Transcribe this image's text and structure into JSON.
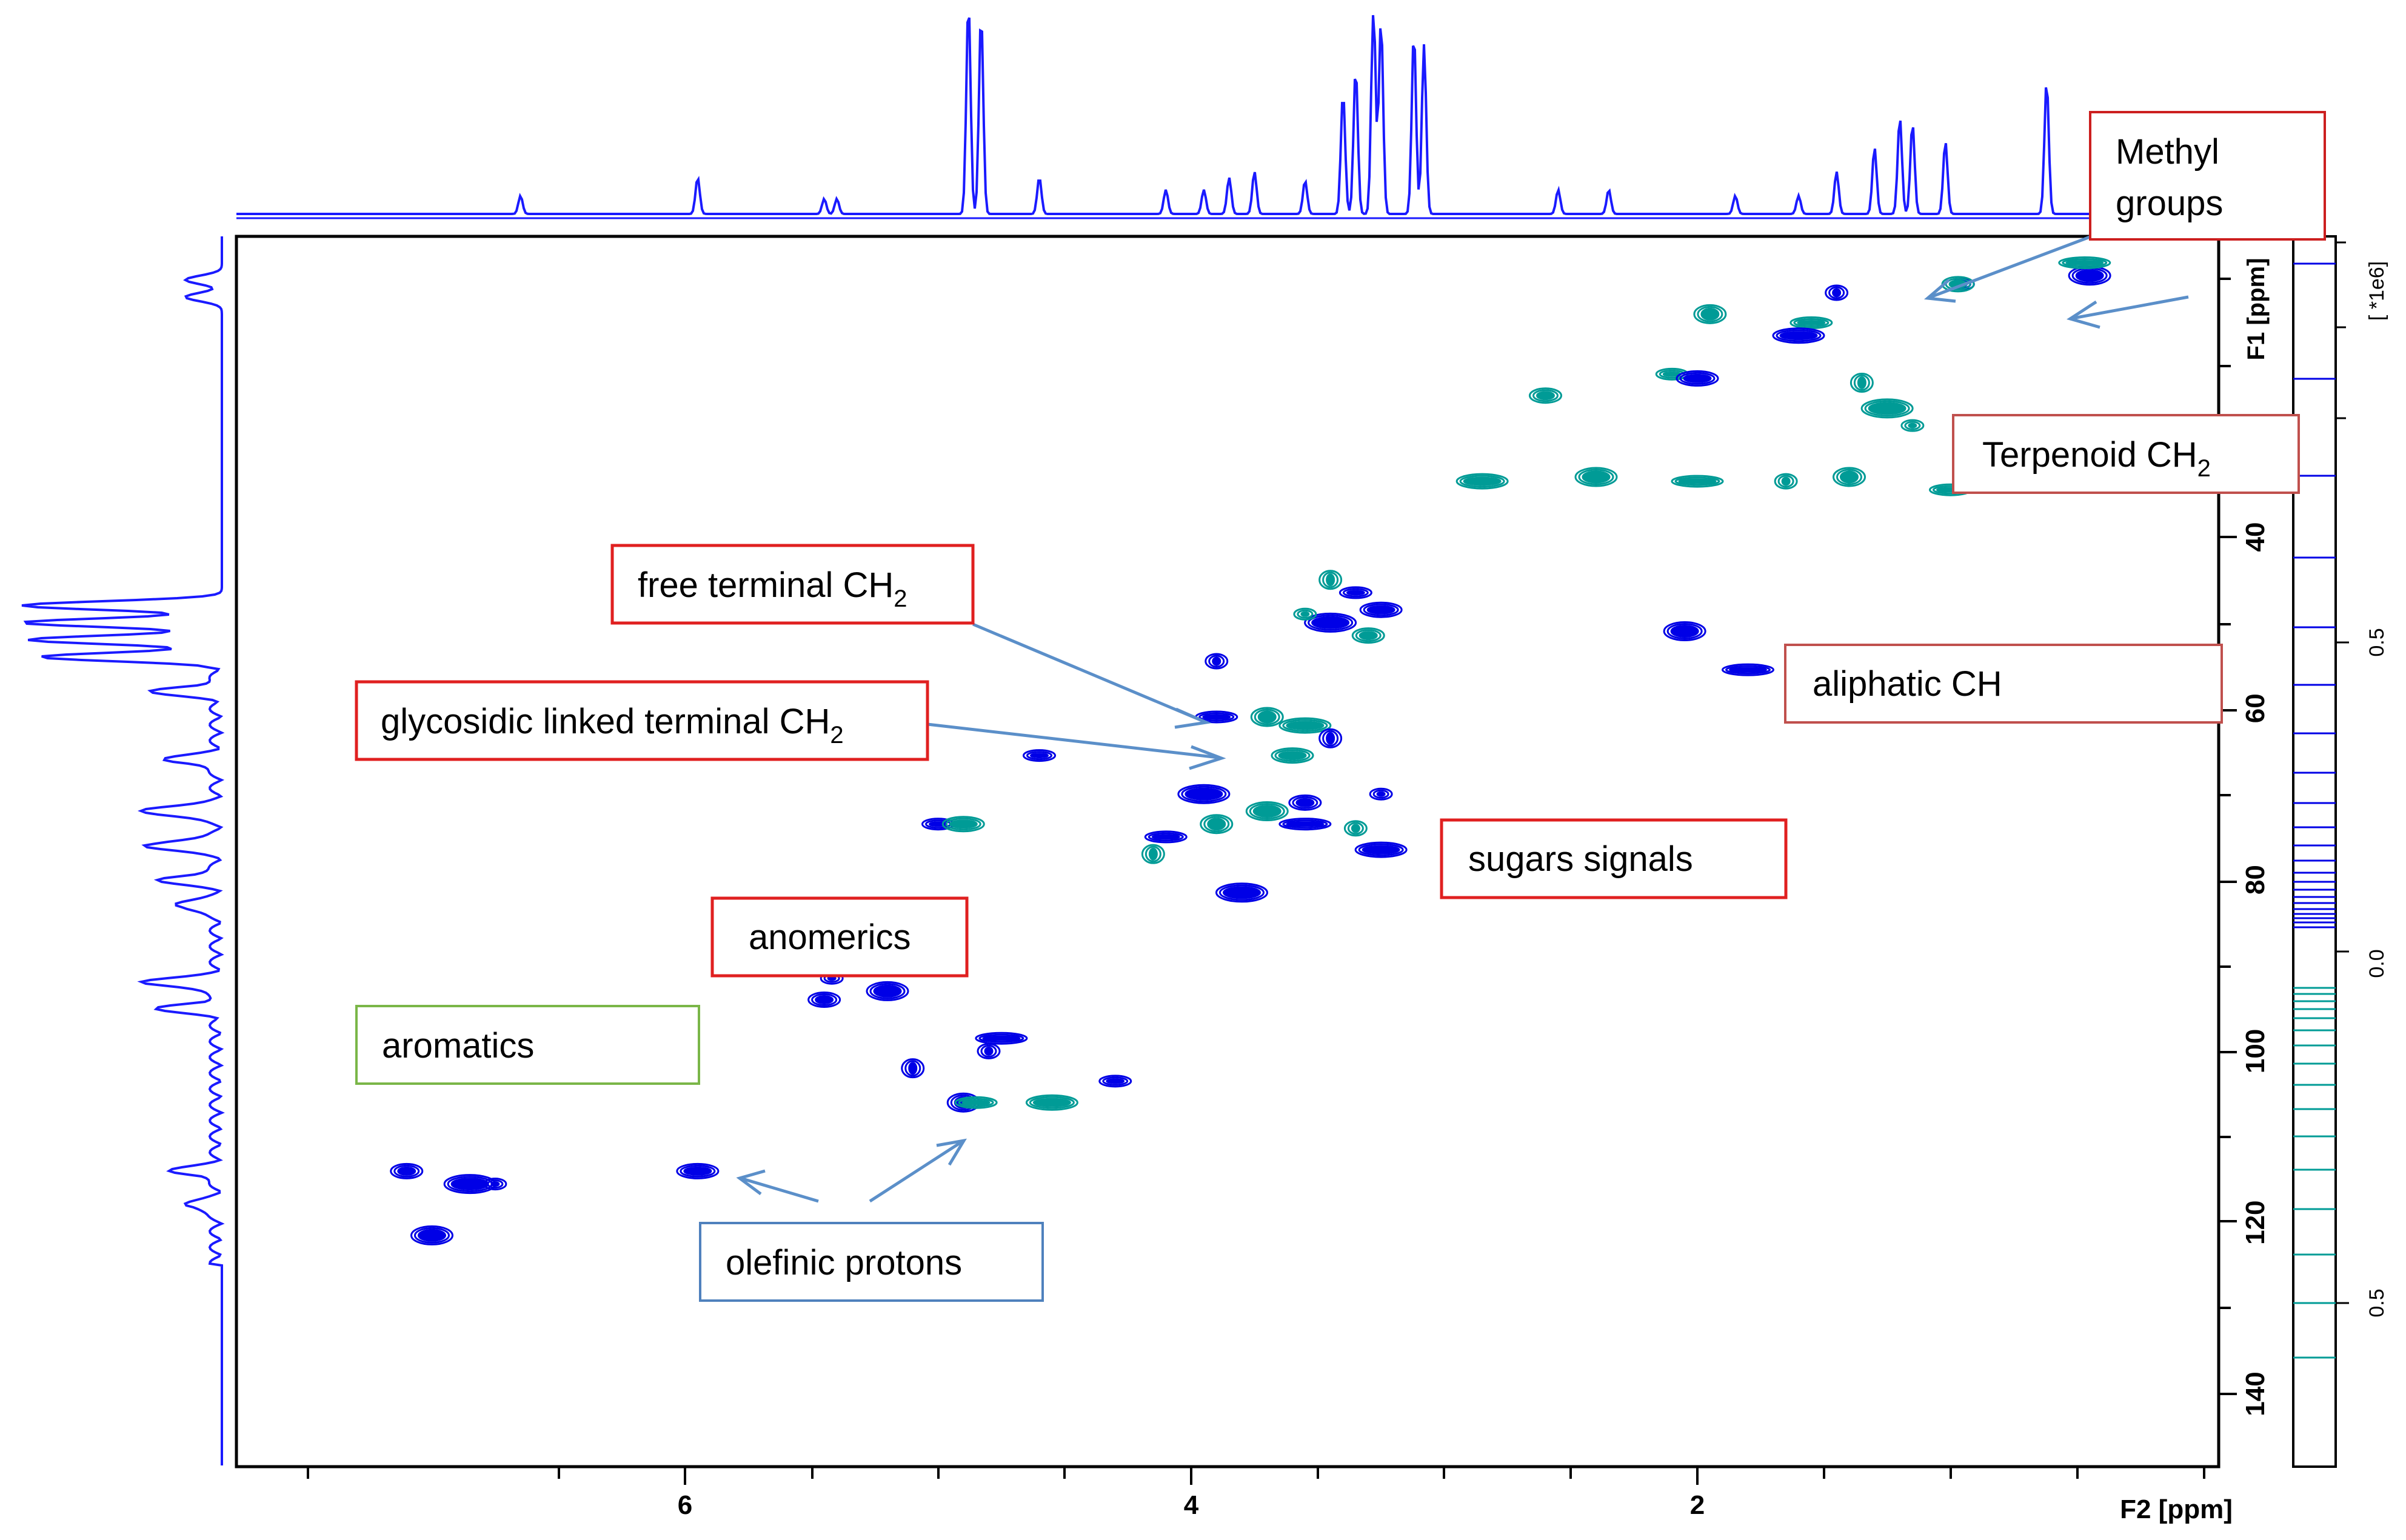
{
  "chart_data": {
    "type": "scatter",
    "subtype": "2D NMR HSQC contour plot with 1D projections",
    "x_axis": {
      "label": "F2 [ppm]",
      "range": [
        8.0,
        0.0
      ],
      "reversed": true,
      "ticks": [
        6,
        4,
        2
      ]
    },
    "y_axis": {
      "label": "F1 [ppm]",
      "range": [
        0,
        147
      ],
      "reversed": true,
      "ticks": [
        40,
        60,
        80,
        100,
        120,
        140
      ]
    },
    "intensity_scale": {
      "multiplier": "[ *1e6]",
      "ticks": [
        "0.5",
        "0.0",
        "0.5"
      ],
      "positive_color": "#0000e6",
      "negative_color": "#009b96"
    },
    "colors": {
      "axis": "#000000",
      "spectrum": "#1a1aff",
      "positive": "#0000e6",
      "negative": "#009b96",
      "arrow": "#5b8fc9"
    },
    "peaks": [
      {
        "f2": 0.95,
        "f1": 10.5,
        "phase": "pos"
      },
      {
        "f2": 0.97,
        "f1": 10.5,
        "phase": "neg"
      },
      {
        "f2": 0.45,
        "f1": 9.5,
        "phase": "pos"
      },
      {
        "f2": 0.47,
        "f1": 8.0,
        "phase": "neg"
      },
      {
        "f2": 1.45,
        "f1": 11.5,
        "phase": "pos"
      },
      {
        "f2": 1.95,
        "f1": 14.0,
        "phase": "neg"
      },
      {
        "f2": 1.55,
        "f1": 15.0,
        "phase": "neg"
      },
      {
        "f2": 1.6,
        "f1": 16.5,
        "phase": "pos"
      },
      {
        "f2": 1.35,
        "f1": 22.0,
        "phase": "neg"
      },
      {
        "f2": 2.1,
        "f1": 21.0,
        "phase": "neg"
      },
      {
        "f2": 2.0,
        "f1": 21.5,
        "phase": "pos"
      },
      {
        "f2": 1.25,
        "f1": 25.0,
        "phase": "neg"
      },
      {
        "f2": 1.15,
        "f1": 27.0,
        "phase": "neg"
      },
      {
        "f2": 2.6,
        "f1": 23.5,
        "phase": "neg"
      },
      {
        "f2": 2.4,
        "f1": 33.0,
        "phase": "neg"
      },
      {
        "f2": 2.0,
        "f1": 33.5,
        "phase": "neg"
      },
      {
        "f2": 1.65,
        "f1": 33.5,
        "phase": "neg"
      },
      {
        "f2": 1.4,
        "f1": 33.0,
        "phase": "neg"
      },
      {
        "f2": 1.0,
        "f1": 34.5,
        "phase": "neg"
      },
      {
        "f2": 2.85,
        "f1": 33.5,
        "phase": "neg"
      },
      {
        "f2": 3.45,
        "f1": 45.0,
        "phase": "neg"
      },
      {
        "f2": 3.35,
        "f1": 46.5,
        "phase": "pos"
      },
      {
        "f2": 3.25,
        "f1": 48.5,
        "phase": "pos"
      },
      {
        "f2": 3.45,
        "f1": 50.0,
        "phase": "pos"
      },
      {
        "f2": 3.55,
        "f1": 49.0,
        "phase": "neg"
      },
      {
        "f2": 3.3,
        "f1": 51.5,
        "phase": "neg"
      },
      {
        "f2": 2.05,
        "f1": 51.0,
        "phase": "pos"
      },
      {
        "f2": 1.8,
        "f1": 55.5,
        "phase": "pos"
      },
      {
        "f2": 3.9,
        "f1": 54.5,
        "phase": "pos"
      },
      {
        "f2": 3.7,
        "f1": 61.0,
        "phase": "neg"
      },
      {
        "f2": 3.9,
        "f1": 61.0,
        "phase": "pos"
      },
      {
        "f2": 3.55,
        "f1": 62.0,
        "phase": "neg"
      },
      {
        "f2": 3.45,
        "f1": 63.5,
        "phase": "pos"
      },
      {
        "f2": 4.6,
        "f1": 65.5,
        "phase": "pos"
      },
      {
        "f2": 3.6,
        "f1": 65.5,
        "phase": "neg"
      },
      {
        "f2": 3.95,
        "f1": 70.0,
        "phase": "pos"
      },
      {
        "f2": 3.25,
        "f1": 70.0,
        "phase": "pos"
      },
      {
        "f2": 3.55,
        "f1": 71.0,
        "phase": "pos"
      },
      {
        "f2": 3.7,
        "f1": 72.0,
        "phase": "neg"
      },
      {
        "f2": 3.55,
        "f1": 73.5,
        "phase": "pos"
      },
      {
        "f2": 3.35,
        "f1": 74.0,
        "phase": "neg"
      },
      {
        "f2": 3.9,
        "f1": 73.5,
        "phase": "neg"
      },
      {
        "f2": 4.1,
        "f1": 75.0,
        "phase": "pos"
      },
      {
        "f2": 3.25,
        "f1": 76.5,
        "phase": "pos"
      },
      {
        "f2": 4.15,
        "f1": 77.0,
        "phase": "neg"
      },
      {
        "f2": 5.0,
        "f1": 73.5,
        "phase": "pos"
      },
      {
        "f2": 4.9,
        "f1": 73.5,
        "phase": "neg"
      },
      {
        "f2": 3.8,
        "f1": 81.5,
        "phase": "pos"
      },
      {
        "f2": 5.42,
        "f1": 91.5,
        "phase": "pos"
      },
      {
        "f2": 5.45,
        "f1": 94.0,
        "phase": "pos"
      },
      {
        "f2": 5.2,
        "f1": 93.0,
        "phase": "pos"
      },
      {
        "f2": 4.75,
        "f1": 98.5,
        "phase": "pos"
      },
      {
        "f2": 4.8,
        "f1": 100.0,
        "phase": "pos"
      },
      {
        "f2": 4.9,
        "f1": 106.0,
        "phase": "pos"
      },
      {
        "f2": 4.85,
        "f1": 106.0,
        "phase": "neg"
      },
      {
        "f2": 4.55,
        "f1": 106.0,
        "phase": "neg"
      },
      {
        "f2": 5.1,
        "f1": 102.0,
        "phase": "pos"
      },
      {
        "f2": 4.3,
        "f1": 103.5,
        "phase": "pos"
      },
      {
        "f2": 5.95,
        "f1": 114.0,
        "phase": "pos"
      },
      {
        "f2": 6.85,
        "f1": 115.5,
        "phase": "pos"
      },
      {
        "f2": 6.75,
        "f1": 115.5,
        "phase": "pos"
      },
      {
        "f2": 7.1,
        "f1": 114.0,
        "phase": "pos"
      },
      {
        "f2": 7.0,
        "f1": 121.5,
        "phase": "pos"
      }
    ],
    "annotations": [
      {
        "id": "methyl",
        "text_lines": [
          "Methyl",
          "groups"
        ],
        "box": "red"
      },
      {
        "id": "terpenoid",
        "text": "Terpenoid CH",
        "sub": "2",
        "box": "red"
      },
      {
        "id": "free-terminal",
        "text": "free terminal CH",
        "sub": "2",
        "box": "red"
      },
      {
        "id": "glycosidic",
        "text": "glycosidic linked terminal CH",
        "sub": "2",
        "box": "red"
      },
      {
        "id": "aliphatic",
        "text": "aliphatic CH",
        "box": "red"
      },
      {
        "id": "sugars",
        "text": "sugars signals",
        "box": "red"
      },
      {
        "id": "anomerics",
        "text": "anomerics",
        "box": "red"
      },
      {
        "id": "aromatics",
        "text": "aromatics",
        "box": "green"
      },
      {
        "id": "olefinic",
        "text": "olefinic protons",
        "box": "blue"
      }
    ]
  }
}
